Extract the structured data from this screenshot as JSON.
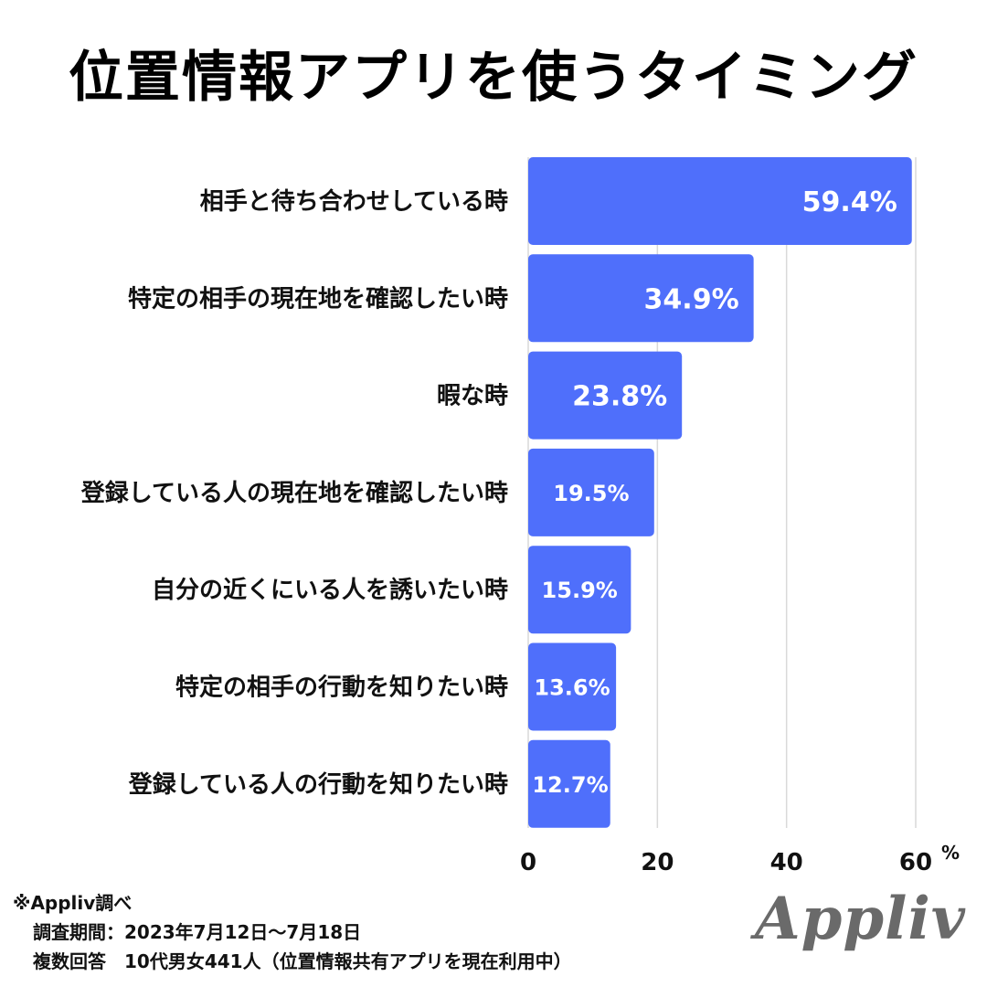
{
  "title": "位置情報アプリを使うタイミング",
  "chart_data": {
    "type": "bar",
    "orientation": "horizontal",
    "title": "位置情報アプリを使うタイミング",
    "categories": [
      "相手と待ち合わせしている時",
      "特定の相手の現在地を確認したい時",
      "暇な時",
      "登録している人の現在地を確認したい時",
      "自分の近くにいる人を誘いたい時",
      "特定の相手の行動を知りたい時",
      "登録している人の行動を知りたい時"
    ],
    "values": [
      59.4,
      34.9,
      23.8,
      19.5,
      15.9,
      13.6,
      12.7
    ],
    "data_labels": [
      "59.4%",
      "34.9%",
      "23.8%",
      "19.5%",
      "15.9%",
      "13.6%",
      "12.7%"
    ],
    "xlim": [
      0,
      60
    ],
    "xticks": [
      "0",
      "20",
      "40",
      "60"
    ],
    "x_unit": "%",
    "grid": true,
    "bar_color": "#4f6ffb",
    "gridline_color": "#d9d9d9"
  },
  "footnote": {
    "source": "※Appliv調べ",
    "period": "調査期間：2023年7月12日～7月18日",
    "method": "複数回答　10代男女441人（位置情報共有アプリを現在利用中）"
  },
  "logo_text": "Appliv"
}
